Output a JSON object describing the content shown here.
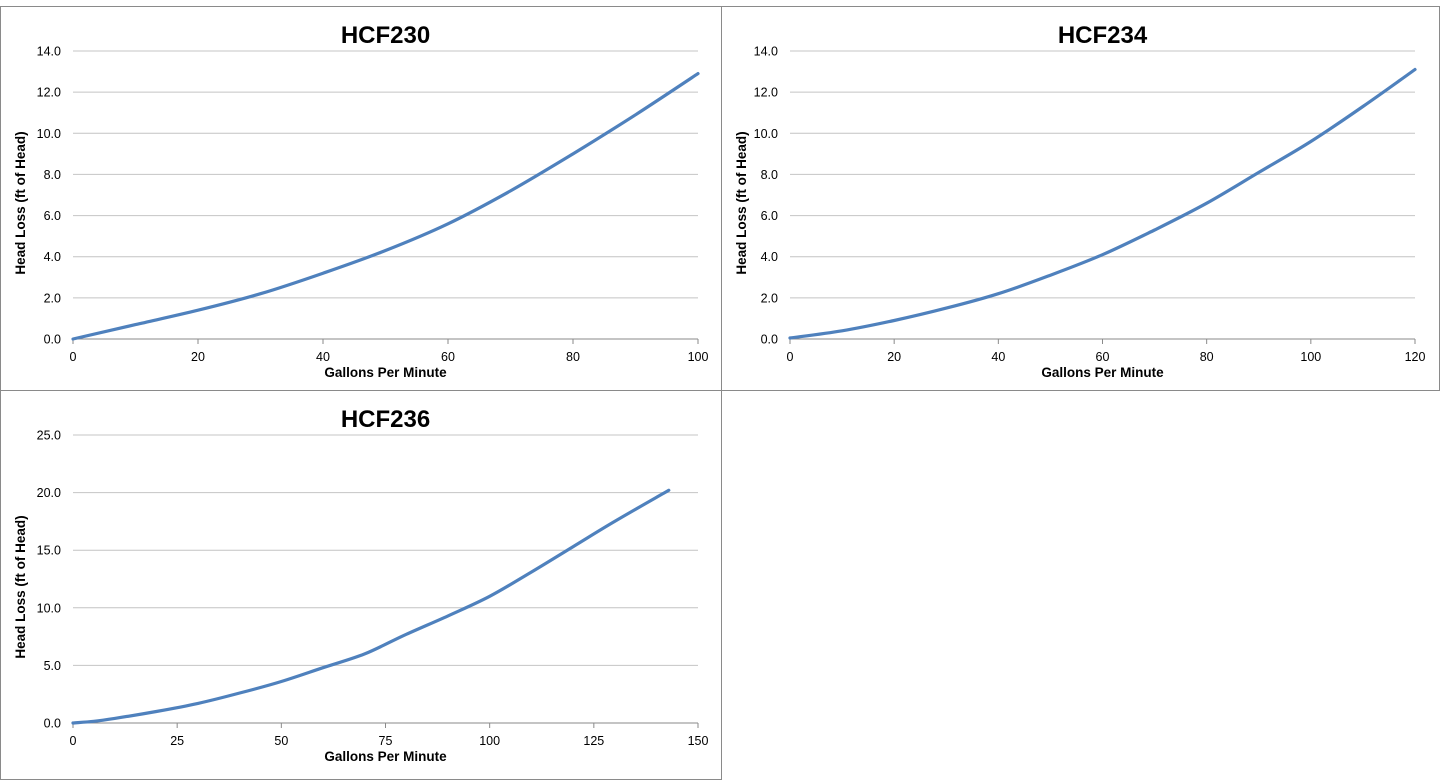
{
  "colors": {
    "series": "#4f81bd"
  },
  "chart_data": [
    {
      "type": "line",
      "title": "HCF230",
      "xlabel": "Gallons Per Minute",
      "ylabel": "Head Loss (ft of Head)",
      "xlim": [
        0,
        100
      ],
      "ylim": [
        0,
        14
      ],
      "x_ticks": [
        0,
        20,
        40,
        60,
        80,
        100
      ],
      "x_tick_labels": [
        "0",
        "20",
        "40",
        "60",
        "80",
        "100"
      ],
      "y_ticks": [
        0,
        2,
        4,
        6,
        8,
        10,
        12,
        14
      ],
      "y_tick_labels": [
        "0.0",
        "2.0",
        "4.0",
        "6.0",
        "8.0",
        "10.0",
        "12.0",
        "14.0"
      ],
      "grid": true,
      "legend": "none",
      "series": [
        {
          "x": [
            0,
            10,
            20,
            30,
            40,
            50,
            60,
            70,
            80,
            90,
            100
          ],
          "y": [
            0.0,
            0.7,
            1.4,
            2.2,
            3.2,
            4.3,
            5.6,
            7.2,
            9.0,
            10.9,
            12.9
          ]
        }
      ]
    },
    {
      "type": "line",
      "title": "HCF234",
      "xlabel": "Gallons Per Minute",
      "ylabel": "Head Loss (ft of Head)",
      "xlim": [
        0,
        120
      ],
      "ylim": [
        0,
        14
      ],
      "x_ticks": [
        0,
        20,
        40,
        60,
        80,
        100,
        120
      ],
      "x_tick_labels": [
        "0",
        "20",
        "40",
        "60",
        "80",
        "100",
        "120"
      ],
      "y_ticks": [
        0,
        2,
        4,
        6,
        8,
        10,
        12,
        14
      ],
      "y_tick_labels": [
        "0.0",
        "2.0",
        "4.0",
        "6.0",
        "8.0",
        "10.0",
        "12.0",
        "14.0"
      ],
      "grid": true,
      "legend": "none",
      "series": [
        {
          "x": [
            0,
            10,
            20,
            30,
            40,
            50,
            60,
            70,
            80,
            90,
            100,
            110,
            120
          ],
          "y": [
            0.05,
            0.4,
            0.9,
            1.5,
            2.2,
            3.1,
            4.1,
            5.3,
            6.6,
            8.1,
            9.6,
            11.3,
            13.1
          ]
        }
      ]
    },
    {
      "type": "line",
      "title": "HCF236",
      "xlabel": "Gallons Per Minute",
      "ylabel": "Head Loss (ft of Head)",
      "xlim": [
        0,
        150
      ],
      "ylim": [
        0,
        25
      ],
      "x_ticks": [
        0,
        25,
        50,
        75,
        100,
        125,
        150
      ],
      "x_tick_labels": [
        "0",
        "25",
        "50",
        "75",
        "100",
        "125",
        "150"
      ],
      "y_ticks": [
        0,
        5,
        10,
        15,
        20,
        25
      ],
      "y_tick_labels": [
        "0.0",
        "5.0",
        "10.0",
        "15.0",
        "20.0",
        "25.0"
      ],
      "grid": true,
      "legend": "none",
      "series": [
        {
          "x": [
            0,
            5,
            10,
            20,
            30,
            40,
            50,
            60,
            70,
            80,
            90,
            100,
            110,
            120,
            130,
            143
          ],
          "y": [
            0.0,
            0.15,
            0.4,
            1.0,
            1.7,
            2.6,
            3.6,
            4.8,
            6.0,
            7.7,
            9.3,
            11.0,
            13.1,
            15.3,
            17.5,
            20.2
          ]
        }
      ]
    }
  ]
}
